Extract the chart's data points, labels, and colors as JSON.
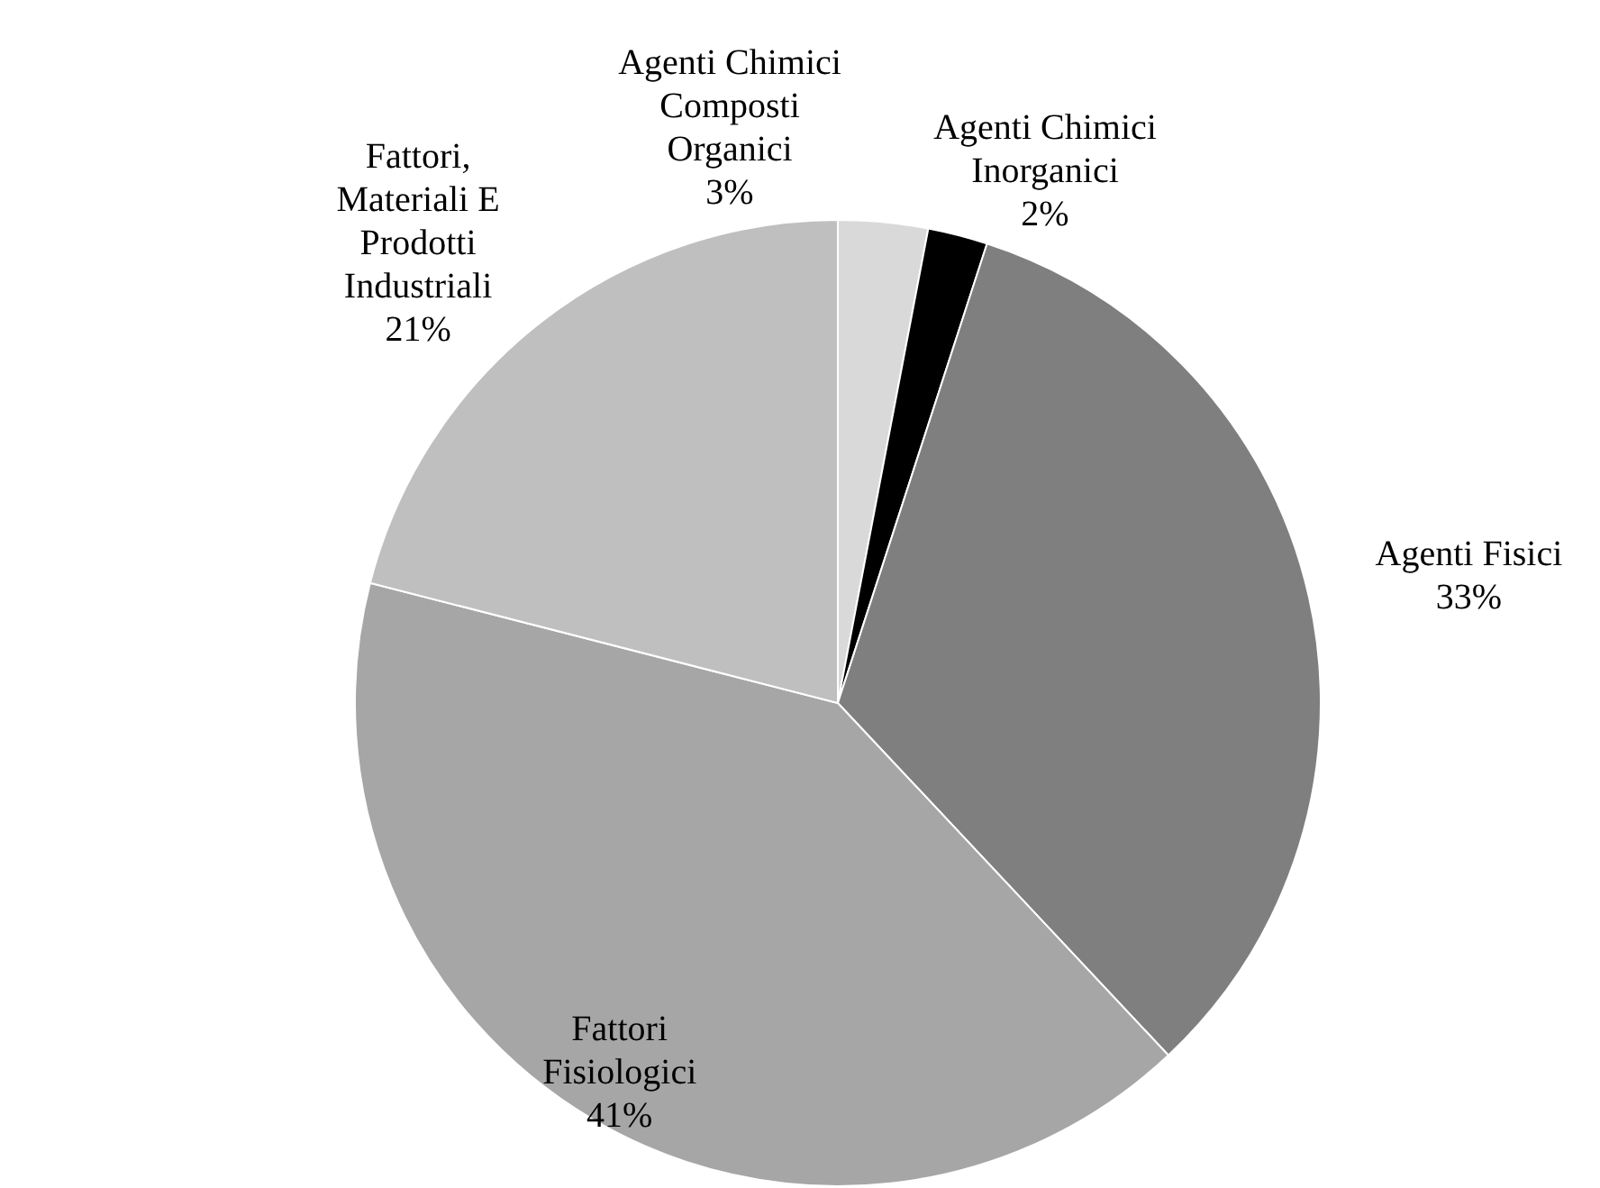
{
  "chart_data": {
    "type": "pie",
    "categories": [
      "Agenti Chimici Composti Organici",
      "Agenti Chimici Inorganici",
      "Agenti Fisici",
      "Fattori Fisiologici",
      "Fattori, Materiali E Prodotti Industriali"
    ],
    "values": [
      3,
      2,
      33,
      41,
      21
    ],
    "value_labels": [
      "3%",
      "2%",
      "33%",
      "41%",
      "21%"
    ],
    "colors": [
      "#d9d9d9",
      "#000000",
      "#7f7f7f",
      "#a6a6a6",
      "#bfbfbf"
    ]
  }
}
